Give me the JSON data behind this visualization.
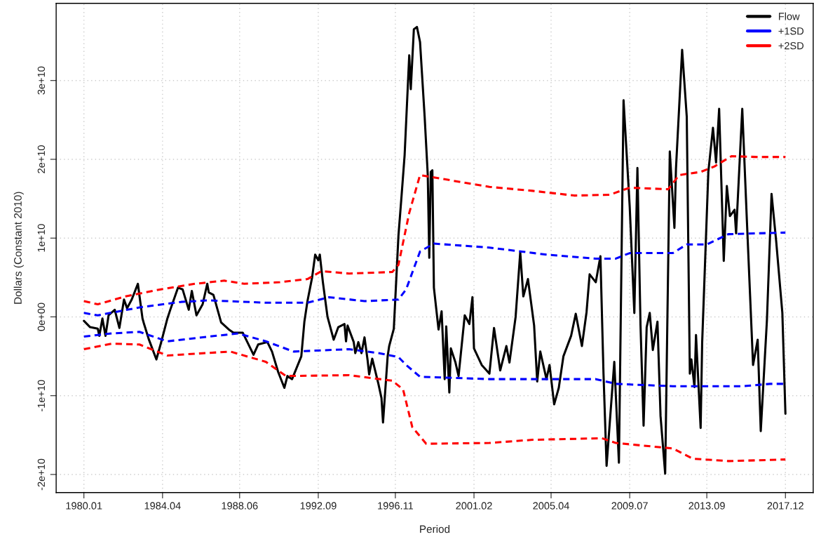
{
  "chart_data": {
    "type": "line",
    "xlabel": "Period",
    "ylabel": "Dollars (Constant 2010)",
    "xlim": [
      "1978-07",
      "2019-06"
    ],
    "ylim": [
      -22300000000.0,
      39800000000.0
    ],
    "xticks": [
      {
        "value": "1980-01",
        "label": "1980.01"
      },
      {
        "value": "1984-04",
        "label": "1984.04"
      },
      {
        "value": "1988-06",
        "label": "1988.06"
      },
      {
        "value": "1992-09",
        "label": "1992.09"
      },
      {
        "value": "1996-11",
        "label": "1996.11"
      },
      {
        "value": "2001-02",
        "label": "2001.02"
      },
      {
        "value": "2005-04",
        "label": "2005.04"
      },
      {
        "value": "2009-07",
        "label": "2009.07"
      },
      {
        "value": "2013-09",
        "label": "2013.09"
      },
      {
        "value": "2017-12",
        "label": "2017.12"
      }
    ],
    "yticks": [
      {
        "value": -20000000000.0,
        "label": "-2e+10"
      },
      {
        "value": -10000000000.0,
        "label": "-1e+10"
      },
      {
        "value": 0,
        "label": "0e+00"
      },
      {
        "value": 10000000000.0,
        "label": "1e+10"
      },
      {
        "value": 20000000000.0,
        "label": "2e+10"
      },
      {
        "value": 30000000000.0,
        "label": "3e+10"
      }
    ],
    "grid": true,
    "legend": "top right",
    "marker": "none",
    "series": [
      {
        "name": "Flow",
        "color": "#000000",
        "line_style": "solid",
        "x": [
          "1980-01",
          "1980-05",
          "1980-10",
          "1980-11",
          "1981-01",
          "1981-03",
          "1981-05",
          "1981-09",
          "1981-12",
          "1982-03",
          "1982-05",
          "1982-08",
          "1982-12",
          "1983-03",
          "1983-04",
          "1983-07",
          "1983-12",
          "1984-03",
          "1984-07",
          "1984-09",
          "1985-02",
          "1985-05",
          "1985-09",
          "1985-11",
          "1986-02",
          "1986-06",
          "1986-09",
          "1986-10",
          "1987-01",
          "1987-06",
          "1987-11",
          "1988-02",
          "1988-08",
          "1989-03",
          "1989-06",
          "1989-12",
          "1990-03",
          "1990-07",
          "1990-11",
          "1991-01",
          "1991-04",
          "1991-10",
          "1991-12",
          "1992-02",
          "1992-05",
          "1992-07",
          "1992-09",
          "1992-10",
          "1992-12",
          "1993-03",
          "1993-07",
          "1993-10",
          "1994-02",
          "1994-03",
          "1994-04",
          "1994-08",
          "1994-09",
          "1994-11",
          "1995-01",
          "1995-03",
          "1995-05",
          "1995-06",
          "1995-08",
          "1995-12",
          "1996-02",
          "1996-03",
          "1996-06",
          "1996-07",
          "1996-10",
          "1997-01",
          "1997-03",
          "1997-05",
          "1997-08",
          "1997-09",
          "1997-11",
          "1998-01",
          "1998-03",
          "1998-06",
          "1998-08",
          "1998-09",
          "1998-10",
          "1998-11",
          "1998-12",
          "1999-03",
          "1999-05",
          "1999-07",
          "1999-08",
          "1999-10",
          "1999-11",
          "2000-02",
          "2000-04",
          "2000-08",
          "2000-11",
          "2001-01",
          "2001-02",
          "2001-07",
          "2001-12",
          "2002-03",
          "2002-07",
          "2002-11",
          "2003-01",
          "2003-05",
          "2003-08",
          "2003-10",
          "2004-01",
          "2004-05",
          "2004-07",
          "2004-09",
          "2005-01",
          "2005-03",
          "2005-06",
          "2005-09",
          "2005-12",
          "2006-05",
          "2006-08",
          "2006-12",
          "2007-03",
          "2007-05",
          "2007-09",
          "2007-12",
          "2008-02",
          "2008-04",
          "2008-09",
          "2008-12",
          "2009-03",
          "2009-07",
          "2009-10",
          "2009-12",
          "2010-02",
          "2010-04",
          "2010-06",
          "2010-08",
          "2010-10",
          "2011-01",
          "2011-03",
          "2011-06",
          "2011-09",
          "2011-12",
          "2012-01",
          "2012-05",
          "2012-08",
          "2012-10",
          "2012-11",
          "2013-01",
          "2013-02",
          "2013-05",
          "2013-06",
          "2013-10",
          "2014-01",
          "2014-03",
          "2014-05",
          "2014-08",
          "2014-10",
          "2014-12",
          "2015-03",
          "2015-04",
          "2015-08",
          "2015-11",
          "2016-03",
          "2016-06",
          "2016-08",
          "2016-12",
          "2017-03",
          "2017-06",
          "2017-10",
          "2017-12"
        ],
        "values": [
          -500000000.0,
          -1300000000.0,
          -1500000000.0,
          -2400000000.0,
          -200000000.0,
          -2400000000.0,
          200000000.0,
          900000000.0,
          -1400000000.0,
          2200000000.0,
          1100000000.0,
          2200000000.0,
          4200000000.0,
          -200000000.0,
          -900000000.0,
          -2800000000.0,
          -5400000000.0,
          -3300000000.0,
          -300000000.0,
          900000000.0,
          3700000000.0,
          3500000000.0,
          900000000.0,
          3300000000.0,
          200000000.0,
          1600000000.0,
          4200000000.0,
          3100000000.0,
          2800000000.0,
          -700000000.0,
          -1600000000.0,
          -2000000000.0,
          -2000000000.0,
          -4800000000.0,
          -3500000000.0,
          -3200000000.0,
          -4400000000.0,
          -7000000000.0,
          -9000000000.0,
          -7500000000.0,
          -7900000000.0,
          -5000000000.0,
          -600000000.0,
          2000000000.0,
          5000000000.0,
          7900000000.0,
          7200000000.0,
          7900000000.0,
          4400000000.0,
          0.0,
          -2900000000.0,
          -1300000000.0,
          -900000000.0,
          -3100000000.0,
          -1100000000.0,
          -3200000000.0,
          -4600000000.0,
          -3200000000.0,
          -4600000000.0,
          -2600000000.0,
          -5500000000.0,
          -7300000000.0,
          -5300000000.0,
          -8500000000.0,
          -10300000000.0,
          -13400000000.0,
          -5000000000.0,
          -3700000000.0,
          -1500000000.0,
          10300000000.0,
          15300000000.0,
          20500000000.0,
          33200000000.0,
          28900000000.0,
          36500000000.0,
          36800000000.0,
          34900000000.0,
          25400000000.0,
          18100000000.0,
          7500000000.0,
          18400000000.0,
          18600000000.0,
          3700000000.0,
          -1600000000.0,
          700000000.0,
          -7900000000.0,
          -1200000000.0,
          -9600000000.0,
          -4000000000.0,
          -5800000000.0,
          -7500000000.0,
          200000000.0,
          -900000000.0,
          2500000000.0,
          -4000000000.0,
          -6100000000.0,
          -7200000000.0,
          -1400000000.0,
          -6800000000.0,
          -3700000000.0,
          -5800000000.0,
          0.0,
          8200000000.0,
          2600000000.0,
          4800000000.0,
          -1100000000.0,
          -8200000000.0,
          -4400000000.0,
          -7900000000.0,
          -6100000000.0,
          -11100000000.0,
          -9000000000.0,
          -5000000000.0,
          -2400000000.0,
          400000000.0,
          -3700000000.0,
          600000000.0,
          5400000000.0,
          4400000000.0,
          7700000000.0,
          -7200000000.0,
          -18900000000.0,
          -5700000000.0,
          -18500000000.0,
          27500000000.0,
          14000000000.0,
          500000000.0,
          18900000000.0,
          -1000000000.0,
          -13800000000.0,
          -1300000000.0,
          500000000.0,
          -4200000000.0,
          -600000000.0,
          -12600000000.0,
          -19900000000.0,
          21000000000.0,
          11300000000.0,
          18800000000.0,
          33900000000.0,
          25400000000.0,
          -7200000000.0,
          -5400000000.0,
          -8900000000.0,
          -2300000000.0,
          -14100000000.0,
          -3200000000.0,
          18400000000.0,
          24000000000.0,
          19600000000.0,
          26400000000.0,
          7100000000.0,
          16600000000.0,
          12800000000.0,
          13600000000.0,
          10600000000.0,
          26400000000.0,
          12200000000.0,
          -6100000000.0,
          -2900000000.0,
          -14500000000.0,
          -400000000.0,
          15600000000.0,
          9600000000.0,
          500000000.0,
          -12300000000.0
        ]
      },
      {
        "name": "+1SD",
        "color": "#0000ff",
        "line_style": "dashed",
        "x": [
          "1980-01",
          "1980-10",
          "1983-01",
          "1985-04",
          "1986-10",
          "1989-11",
          "1992-02",
          "1993-04",
          "1995-03",
          "1997-01",
          "1997-06",
          "1998-03",
          "1998-12",
          "2001-12",
          "2005-01",
          "2007-09",
          "2008-10",
          "2009-07",
          "2011-11",
          "2012-08",
          "2013-09",
          "2014-11",
          "2017-12"
        ],
        "values": [
          500000000.0,
          200000000.0,
          1200000000.0,
          1900000000.0,
          2100000000.0,
          1800000000.0,
          1800000000.0,
          2500000000.0,
          2000000000.0,
          2200000000.0,
          3500000000.0,
          8300000000.0,
          9300000000.0,
          8800000000.0,
          7900000000.0,
          7400000000.0,
          7400000000.0,
          8100000000.0,
          8100000000.0,
          9200000000.0,
          9200000000.0,
          10500000000.0,
          10700000000.0
        ]
      },
      {
        "name": null,
        "color": "#0000ff",
        "line_style": "dashed",
        "x": [
          "1980-01",
          "1981-07",
          "1983-01",
          "1984-07",
          "1986-10",
          "1988-05",
          "1989-11",
          "1991-05",
          "1994-05",
          "1995-12",
          "1997-01",
          "1997-06",
          "1998-03",
          "2001-12",
          "2005-10",
          "2007-09",
          "2008-10",
          "2011-11",
          "2015-08",
          "2017-02",
          "2017-12"
        ],
        "values": [
          -2500000000.0,
          -2100000000.0,
          -1900000000.0,
          -3100000000.0,
          -2500000000.0,
          -2100000000.0,
          -3100000000.0,
          -4400000000.0,
          -4100000000.0,
          -4600000000.0,
          -5100000000.0,
          -6100000000.0,
          -7600000000.0,
          -7900000000.0,
          -7900000000.0,
          -7900000000.0,
          -8500000000.0,
          -8800000000.0,
          -8800000000.0,
          -8500000000.0,
          -8500000000.0
        ]
      },
      {
        "name": "+2SD",
        "color": "#ff0000",
        "line_style": "dashed",
        "x": [
          "1980-01",
          "1980-10",
          "1982-04",
          "1984-03",
          "1986-01",
          "1987-08",
          "1988-09",
          "1990-08",
          "1992-02",
          "1992-11",
          "1994-05",
          "1996-09",
          "1997-01",
          "1997-08",
          "1998-03",
          "1998-12",
          "2001-12",
          "2004-04",
          "2006-07",
          "2008-06",
          "2009-07",
          "2011-08",
          "2012-03",
          "2013-05",
          "2014-02",
          "2015-01",
          "2016-05",
          "2017-12"
        ],
        "values": [
          2000000000.0,
          1600000000.0,
          2600000000.0,
          3500000000.0,
          4200000000.0,
          4600000000.0,
          4200000000.0,
          4400000000.0,
          4800000000.0,
          5800000000.0,
          5500000000.0,
          5700000000.0,
          6600000000.0,
          13200000000.0,
          18000000000.0,
          17700000000.0,
          16500000000.0,
          16000000000.0,
          15400000000.0,
          15500000000.0,
          16400000000.0,
          16200000000.0,
          18000000000.0,
          18400000000.0,
          19100000000.0,
          20400000000.0,
          20300000000.0,
          20300000000.0
        ]
      },
      {
        "name": null,
        "color": "#ff0000",
        "line_style": "dashed",
        "x": [
          "1980-01",
          "1981-07",
          "1983-01",
          "1984-07",
          "1987-12",
          "1989-11",
          "1990-12",
          "1994-05",
          "1996-09",
          "1997-04",
          "1997-10",
          "1998-07",
          "2001-12",
          "2004-04",
          "2008-01",
          "2008-10",
          "2011-11",
          "2012-12",
          "2014-11",
          "2017-12"
        ],
        "values": [
          -4100000000.0,
          -3400000000.0,
          -3500000000.0,
          -4900000000.0,
          -4400000000.0,
          -5700000000.0,
          -7500000000.0,
          -7400000000.0,
          -8100000000.0,
          -9200000000.0,
          -14000000000.0,
          -16100000000.0,
          -16000000000.0,
          -15600000000.0,
          -15400000000.0,
          -16000000000.0,
          -16700000000.0,
          -18000000000.0,
          -18300000000.0,
          -18100000000.0
        ]
      }
    ]
  }
}
